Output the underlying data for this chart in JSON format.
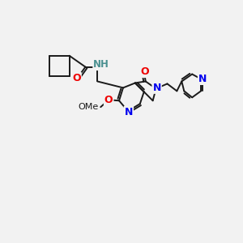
{
  "background_color": "#f2f2f2",
  "bond_color": "#1a1a1a",
  "atom_colors": {
    "N": "#0000ee",
    "O": "#ee0000",
    "H": "#4a9090",
    "C": "#1a1a1a"
  },
  "figsize": [
    3.0,
    3.0
  ],
  "dpi": 100
}
